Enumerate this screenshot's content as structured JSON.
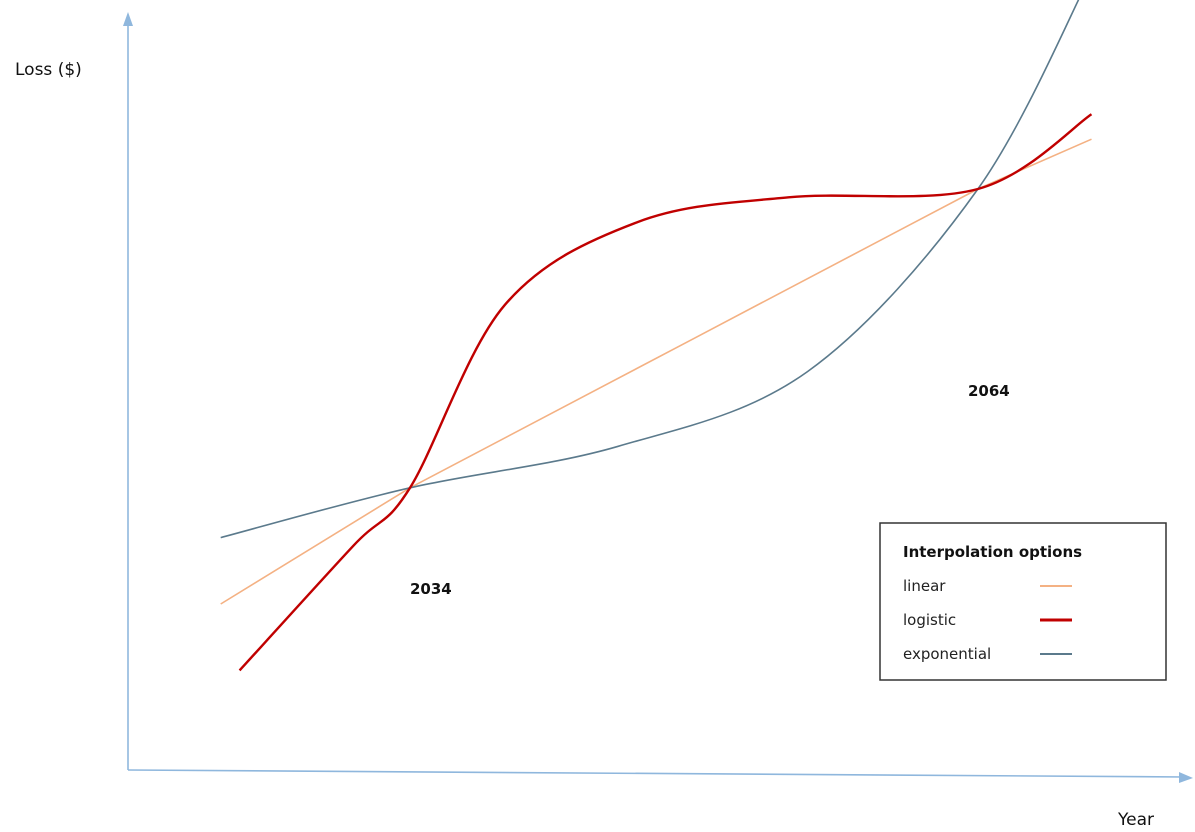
{
  "chart_data": {
    "type": "line",
    "title": "",
    "xlabel": "Year",
    "ylabel": "Loss ($)",
    "grid": false,
    "legend": {
      "title": "Interpolation options",
      "placement": "right"
    },
    "annotations": [
      "2034",
      "2064"
    ],
    "series": [
      {
        "name": "linear",
        "color": "#f4b183",
        "x": [
          2024,
          2034,
          2049,
          2064,
          2070
        ],
        "y": [
          0.2,
          0.34,
          0.52,
          0.7,
          0.76
        ]
      },
      {
        "name": "logistic",
        "color": "#c00000",
        "x": [
          2025,
          2031,
          2034,
          2039,
          2046,
          2054,
          2064,
          2070
        ],
        "y": [
          0.12,
          0.27,
          0.34,
          0.56,
          0.66,
          0.69,
          0.7,
          0.79
        ]
      },
      {
        "name": "exponential",
        "color": "#5b7a8c",
        "x": [
          2024,
          2034,
          2045,
          2055,
          2064,
          2070
        ],
        "y": [
          0.28,
          0.34,
          0.39,
          0.48,
          0.7,
          0.96
        ]
      }
    ]
  },
  "colors": {
    "axis": "#8fb7dd",
    "legend_border": "#333333"
  }
}
